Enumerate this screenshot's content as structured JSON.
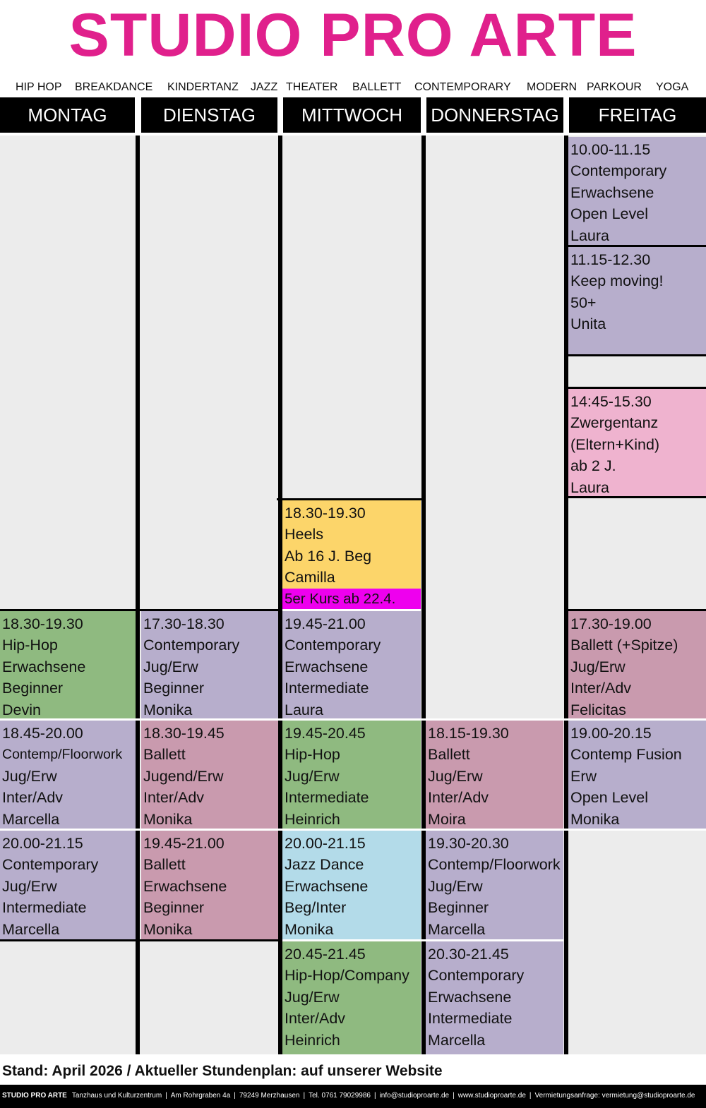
{
  "title": "STUDIO PRO ARTE",
  "styles": [
    "HIP HOP",
    "BREAKDANCE",
    "KINDERTANZ",
    "JAZZ",
    "THEATER",
    "BALLETT",
    "CONTEMPORARY",
    "MODERN",
    "PARKOUR",
    "YOGA"
  ],
  "days": [
    "MONTAG",
    "DIENSTAG",
    "MITTWOCH",
    "DONNERSTAG",
    "FREITAG"
  ],
  "classes": {
    "fri_1000": [
      "10.00-11.15",
      "Contemporary",
      "Erwachsene",
      "Open Level",
      "Laura"
    ],
    "fri_1115": [
      "11.15-12.30",
      "Keep moving!",
      "50+",
      "Unita"
    ],
    "fri_1445": [
      "14:45-15.30",
      "Zwergentanz",
      "(Eltern+Kind)",
      "ab 2 J.",
      "Laura"
    ],
    "wed_1830": [
      "18.30-19.30",
      "Heels",
      "Ab 16 J. Beg",
      "Camilla"
    ],
    "wed_1830_note": "5er Kurs ab 22.4.",
    "mon_1830": [
      "18.30-19.30",
      "Hip-Hop",
      "Erwachsene",
      "Beginner",
      "Devin"
    ],
    "tue_1730": [
      "17.30-18.30",
      "Contemporary",
      "Jug/Erw",
      "Beginner",
      "Monika"
    ],
    "wed_1945": [
      "19.45-21.00",
      "Contemporary",
      "Erwachsene",
      "Intermediate",
      "Laura"
    ],
    "fri_1730": [
      "17.30-19.00",
      "Ballett (+Spitze)",
      "Jug/Erw",
      "Inter/Adv",
      "Felicitas"
    ],
    "mon_1845": [
      "18.45-20.00",
      "Contemp/Floorwork",
      "Jug/Erw",
      "Inter/Adv",
      "Marcella"
    ],
    "tue_1830": [
      "18.30-19.45",
      "Ballett",
      "Jugend/Erw",
      "Inter/Adv",
      "Monika"
    ],
    "wed_1945b": [
      "19.45-20.45",
      "Hip-Hop",
      "Jug/Erw",
      "Intermediate",
      "Heinrich"
    ],
    "thu_1815": [
      "18.15-19.30",
      "Ballett",
      "Jug/Erw",
      "Inter/Adv",
      "Moira"
    ],
    "fri_1900": [
      "19.00-20.15",
      "Contemp Fusion",
      "Erw",
      "Open Level",
      "Monika"
    ],
    "mon_2000": [
      "20.00-21.15",
      "Contemporary",
      "Jug/Erw",
      "Intermediate",
      "Marcella"
    ],
    "tue_1945": [
      "19.45-21.00",
      "Ballett",
      "Erwachsene",
      "Beginner",
      "Monika"
    ],
    "wed_2000": [
      "20.00-21.15",
      "Jazz Dance",
      "Erwachsene",
      "Beg/Inter",
      "Monika"
    ],
    "thu_1930": [
      "19.30-20.30",
      "Contemp/Floorwork",
      "Jug/Erw",
      "Beginner",
      "Marcella"
    ],
    "wed_2045": [
      "20.45-21.45",
      "Hip-Hop/Company",
      "Jug/Erw",
      "Inter/Adv",
      "Heinrich"
    ],
    "thu_2030": [
      "20.30-21.45",
      "Contemporary",
      "Erwachsene",
      "Intermediate",
      "Marcella"
    ]
  },
  "colors": {
    "title": "#e0208c",
    "contemporary": "#b7aecc",
    "hiphop": "#8fba80",
    "ballett": "#c99aae",
    "heels": "#fcd56a",
    "jazz": "#b3dbe9",
    "kids": "#efb3cf",
    "note": "#ee00ee"
  },
  "stand": "Stand: April 2026 / Aktueller Stundenplan: auf unserer Website",
  "footer": {
    "brand": "STUDIO PRO ARTE",
    "subtitle": "Tanzhaus  und Kulturzentrum",
    "address": "Am Rohrgraben 4a",
    "city": "79249 Merzhausen",
    "phone": "Tel. 0761 79029986",
    "email": "info@studioproarte.de",
    "web": "www.studioproarte.de",
    "rental": "Vermietungsanfrage: vermietung@studioproarte.de"
  }
}
